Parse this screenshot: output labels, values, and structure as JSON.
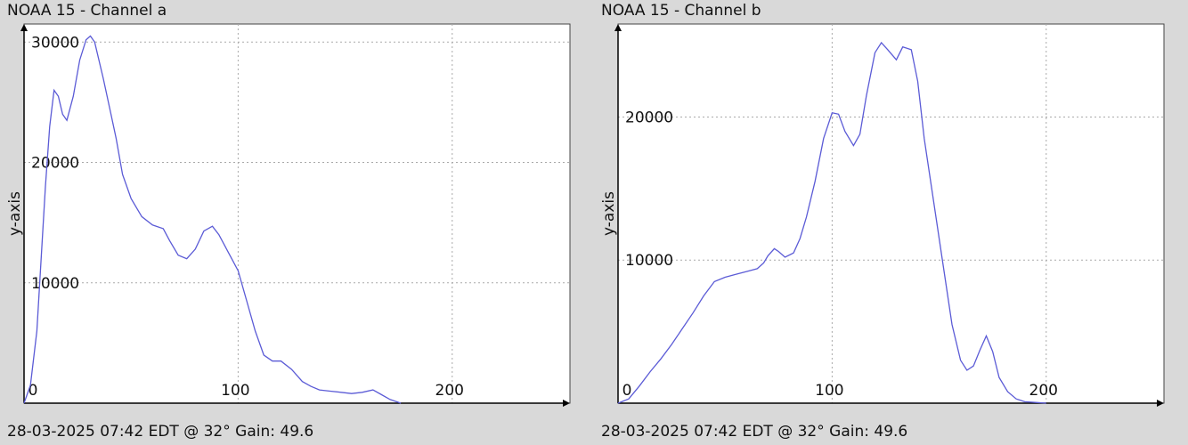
{
  "colors": {
    "page_background": "#d9d9d9",
    "plot_background": "#ffffff",
    "line": "#5b5bd6",
    "grid": "#aaaaaa",
    "axis": "#000000"
  },
  "panels": [
    {
      "title": "NOAA 15 - Channel a",
      "footer": "28-03-2025 07:42 EDT @ 32° Gain: 49.6"
    },
    {
      "title": "NOAA 15 - Channel b",
      "footer": "28-03-2025 07:42 EDT @ 32° Gain: 49.6"
    }
  ],
  "chart_data": [
    {
      "type": "line",
      "title": "NOAA 15 - Channel a",
      "xlabel": "",
      "ylabel": "y-axis",
      "xlim": [
        0,
        255
      ],
      "ylim": [
        0,
        31500
      ],
      "xticks": [
        0,
        100,
        200
      ],
      "yticks": [
        10000,
        20000,
        30000
      ],
      "grid": true,
      "series": [
        {
          "x": [
            0,
            3,
            6,
            8,
            10,
            12,
            14,
            16,
            18,
            20,
            23,
            26,
            29,
            31,
            33,
            35,
            37,
            40,
            43,
            46,
            50,
            55,
            60,
            65,
            68,
            72,
            76,
            80,
            84,
            88,
            91,
            94,
            97,
            100,
            104,
            108,
            112,
            116,
            120,
            125,
            130,
            134,
            138,
            143,
            148,
            153,
            158,
            163,
            167,
            171,
            176
          ],
          "y": [
            0,
            1500,
            6000,
            12000,
            18000,
            23000,
            26000,
            25500,
            24000,
            23500,
            25500,
            28500,
            30200,
            30500,
            30000,
            28500,
            27000,
            24500,
            22000,
            19000,
            17000,
            15500,
            14800,
            14500,
            13500,
            12300,
            12000,
            12800,
            14300,
            14700,
            14000,
            13000,
            12000,
            11000,
            8500,
            6000,
            4000,
            3500,
            3500,
            2800,
            1800,
            1400,
            1100,
            1000,
            900,
            800,
            900,
            1100,
            700,
            300,
            0
          ]
        }
      ]
    },
    {
      "type": "line",
      "title": "NOAA 15 - Channel b",
      "xlabel": "",
      "ylabel": "y-axis",
      "xlim": [
        0,
        255
      ],
      "ylim": [
        0,
        26500
      ],
      "xticks": [
        0,
        100,
        200
      ],
      "yticks": [
        10000,
        20000
      ],
      "grid": true,
      "series": [
        {
          "x": [
            0,
            5,
            10,
            15,
            20,
            25,
            30,
            35,
            40,
            45,
            50,
            55,
            60,
            65,
            68,
            70,
            73,
            75,
            78,
            82,
            85,
            88,
            92,
            96,
            100,
            103,
            106,
            110,
            113,
            116,
            120,
            123,
            126,
            130,
            133,
            137,
            140,
            143,
            147,
            150,
            153,
            156,
            160,
            163,
            166,
            169,
            172,
            175,
            178,
            182,
            186,
            190,
            195,
            200
          ],
          "y": [
            0,
            300,
            1200,
            2200,
            3100,
            4100,
            5200,
            6300,
            7500,
            8500,
            8800,
            9000,
            9200,
            9400,
            9800,
            10300,
            10800,
            10600,
            10200,
            10500,
            11500,
            13000,
            15500,
            18500,
            20300,
            20200,
            19000,
            18000,
            18800,
            21500,
            24500,
            25200,
            24700,
            24000,
            24900,
            24700,
            22500,
            18500,
            14500,
            11500,
            8500,
            5500,
            3000,
            2300,
            2600,
            3700,
            4700,
            3600,
            1800,
            800,
            300,
            100,
            50,
            0
          ]
        }
      ]
    }
  ]
}
